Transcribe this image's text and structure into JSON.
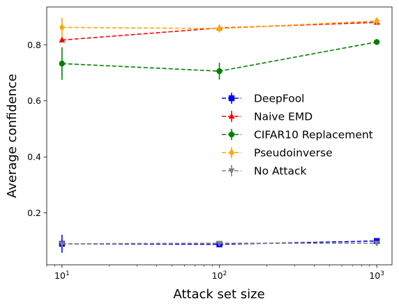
{
  "chart_data": {
    "type": "line",
    "xlabel": "Attack set size",
    "ylabel": "Average confidence",
    "x_scale": "log",
    "x": [
      10,
      100,
      1000
    ],
    "xlim": [
      8.0,
      1250
    ],
    "ylim": [
      0.015,
      0.935
    ],
    "x_ticks": [
      10,
      100,
      1000
    ],
    "x_tick_labels": [
      {
        "base": "10",
        "exp": "1"
      },
      {
        "base": "10",
        "exp": "2"
      },
      {
        "base": "10",
        "exp": "3"
      }
    ],
    "y_ticks": [
      0.2,
      0.4,
      0.6,
      0.8
    ],
    "y_tick_labels": [
      "0.2",
      "0.4",
      "0.6",
      "0.8"
    ],
    "grid": false,
    "legend_position": "center-right",
    "series": [
      {
        "name": "DeepFool",
        "color": "#0000ff",
        "marker": "square",
        "values": [
          0.09,
          0.088,
          0.1
        ],
        "errors": [
          0.032,
          0.006,
          0.006
        ]
      },
      {
        "name": "Naive EMD",
        "color": "#ff0000",
        "marker": "triangle-up",
        "values": [
          0.817,
          0.86,
          0.88
        ],
        "errors": [
          0.008,
          0.008,
          0.008
        ]
      },
      {
        "name": "CIFAR10 Replacement",
        "color": "#008000",
        "marker": "circle",
        "values": [
          0.733,
          0.706,
          0.81
        ],
        "errors": [
          0.058,
          0.03,
          0.006
        ]
      },
      {
        "name": "Pseudoinverse",
        "color": "#ffa500",
        "marker": "diamond",
        "values": [
          0.862,
          0.858,
          0.885
        ],
        "errors": [
          0.034,
          0.014,
          0.008
        ]
      },
      {
        "name": "No Attack",
        "color": "#808080",
        "marker": "triangle-down",
        "values": [
          0.09,
          0.092,
          0.092
        ],
        "errors": [
          0.004,
          0.004,
          0.004
        ]
      }
    ]
  }
}
